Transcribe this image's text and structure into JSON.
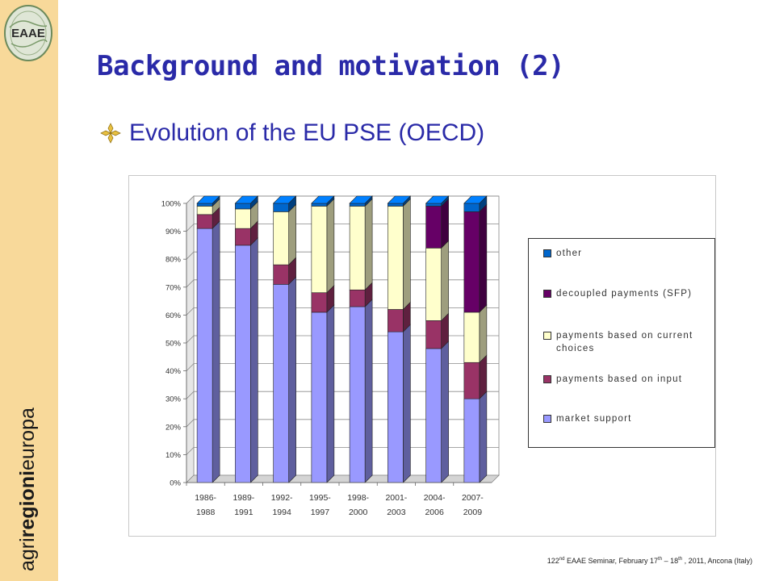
{
  "slide": {
    "title": "Background and motivation (2)",
    "bullet_text": "Evolution of the EU PSE (OECD)",
    "sidebar_brand": {
      "part1": "agri",
      "part2": "regioni",
      "part3": "europa"
    },
    "logo_text": "EAAE",
    "footer": {
      "pre": "122",
      "sup1": "nd",
      "mid1": " EAAE Seminar, February 17",
      "sup2": "th",
      "mid2": " – 18",
      "sup3": "th",
      "post": " , 2011, Ancona (Italy)"
    }
  },
  "colors": {
    "sidebar": "#f8d99a",
    "title": "#2a2aa8",
    "market_support": "#9999ff",
    "payments_input": "#993366",
    "payments_current": "#ffffcc",
    "decoupled": "#660066",
    "other": "#0066cc"
  },
  "chart_data": {
    "type": "bar",
    "stacked": true,
    "percent": true,
    "categories": [
      [
        "1986-",
        "1988"
      ],
      [
        "1989-",
        "1991"
      ],
      [
        "1992-",
        "1994"
      ],
      [
        "1995-",
        "1997"
      ],
      [
        "1998-",
        "2000"
      ],
      [
        "2001-",
        "2003"
      ],
      [
        "2004-",
        "2006"
      ],
      [
        "2007-",
        "2009"
      ]
    ],
    "series": [
      {
        "name": "market support",
        "color": "#9999ff",
        "values": [
          91,
          85,
          71,
          61,
          63,
          54,
          48,
          30
        ]
      },
      {
        "name": "payments based on input",
        "color": "#993366",
        "values": [
          5,
          6,
          7,
          7,
          6,
          8,
          10,
          13
        ]
      },
      {
        "name": "payments based on current choices",
        "color": "#ffffcc",
        "values": [
          3,
          7,
          19,
          31,
          30,
          37,
          26,
          18
        ]
      },
      {
        "name": "decoupled payments (SFP)",
        "color": "#660066",
        "values": [
          0,
          0,
          0,
          0,
          0,
          0,
          15,
          36
        ]
      },
      {
        "name": "other",
        "color": "#0066cc",
        "values": [
          1,
          2,
          3,
          1,
          1,
          1,
          1,
          3
        ]
      }
    ],
    "ylim": [
      0,
      100
    ],
    "yticks": [
      "0%",
      "10%",
      "20%",
      "30%",
      "40%",
      "50%",
      "60%",
      "70%",
      "80%",
      "90%",
      "100%"
    ],
    "legend": [
      {
        "label": "other",
        "color": "#0066cc"
      },
      {
        "label": "decoupled payments (SFP)",
        "color": "#660066"
      },
      {
        "label": "payments based on current choices",
        "color": "#ffffcc"
      },
      {
        "label": "payments based on input",
        "color": "#993366"
      },
      {
        "label": "market support",
        "color": "#9999ff"
      }
    ],
    "legend_position": "right",
    "grid": true
  }
}
